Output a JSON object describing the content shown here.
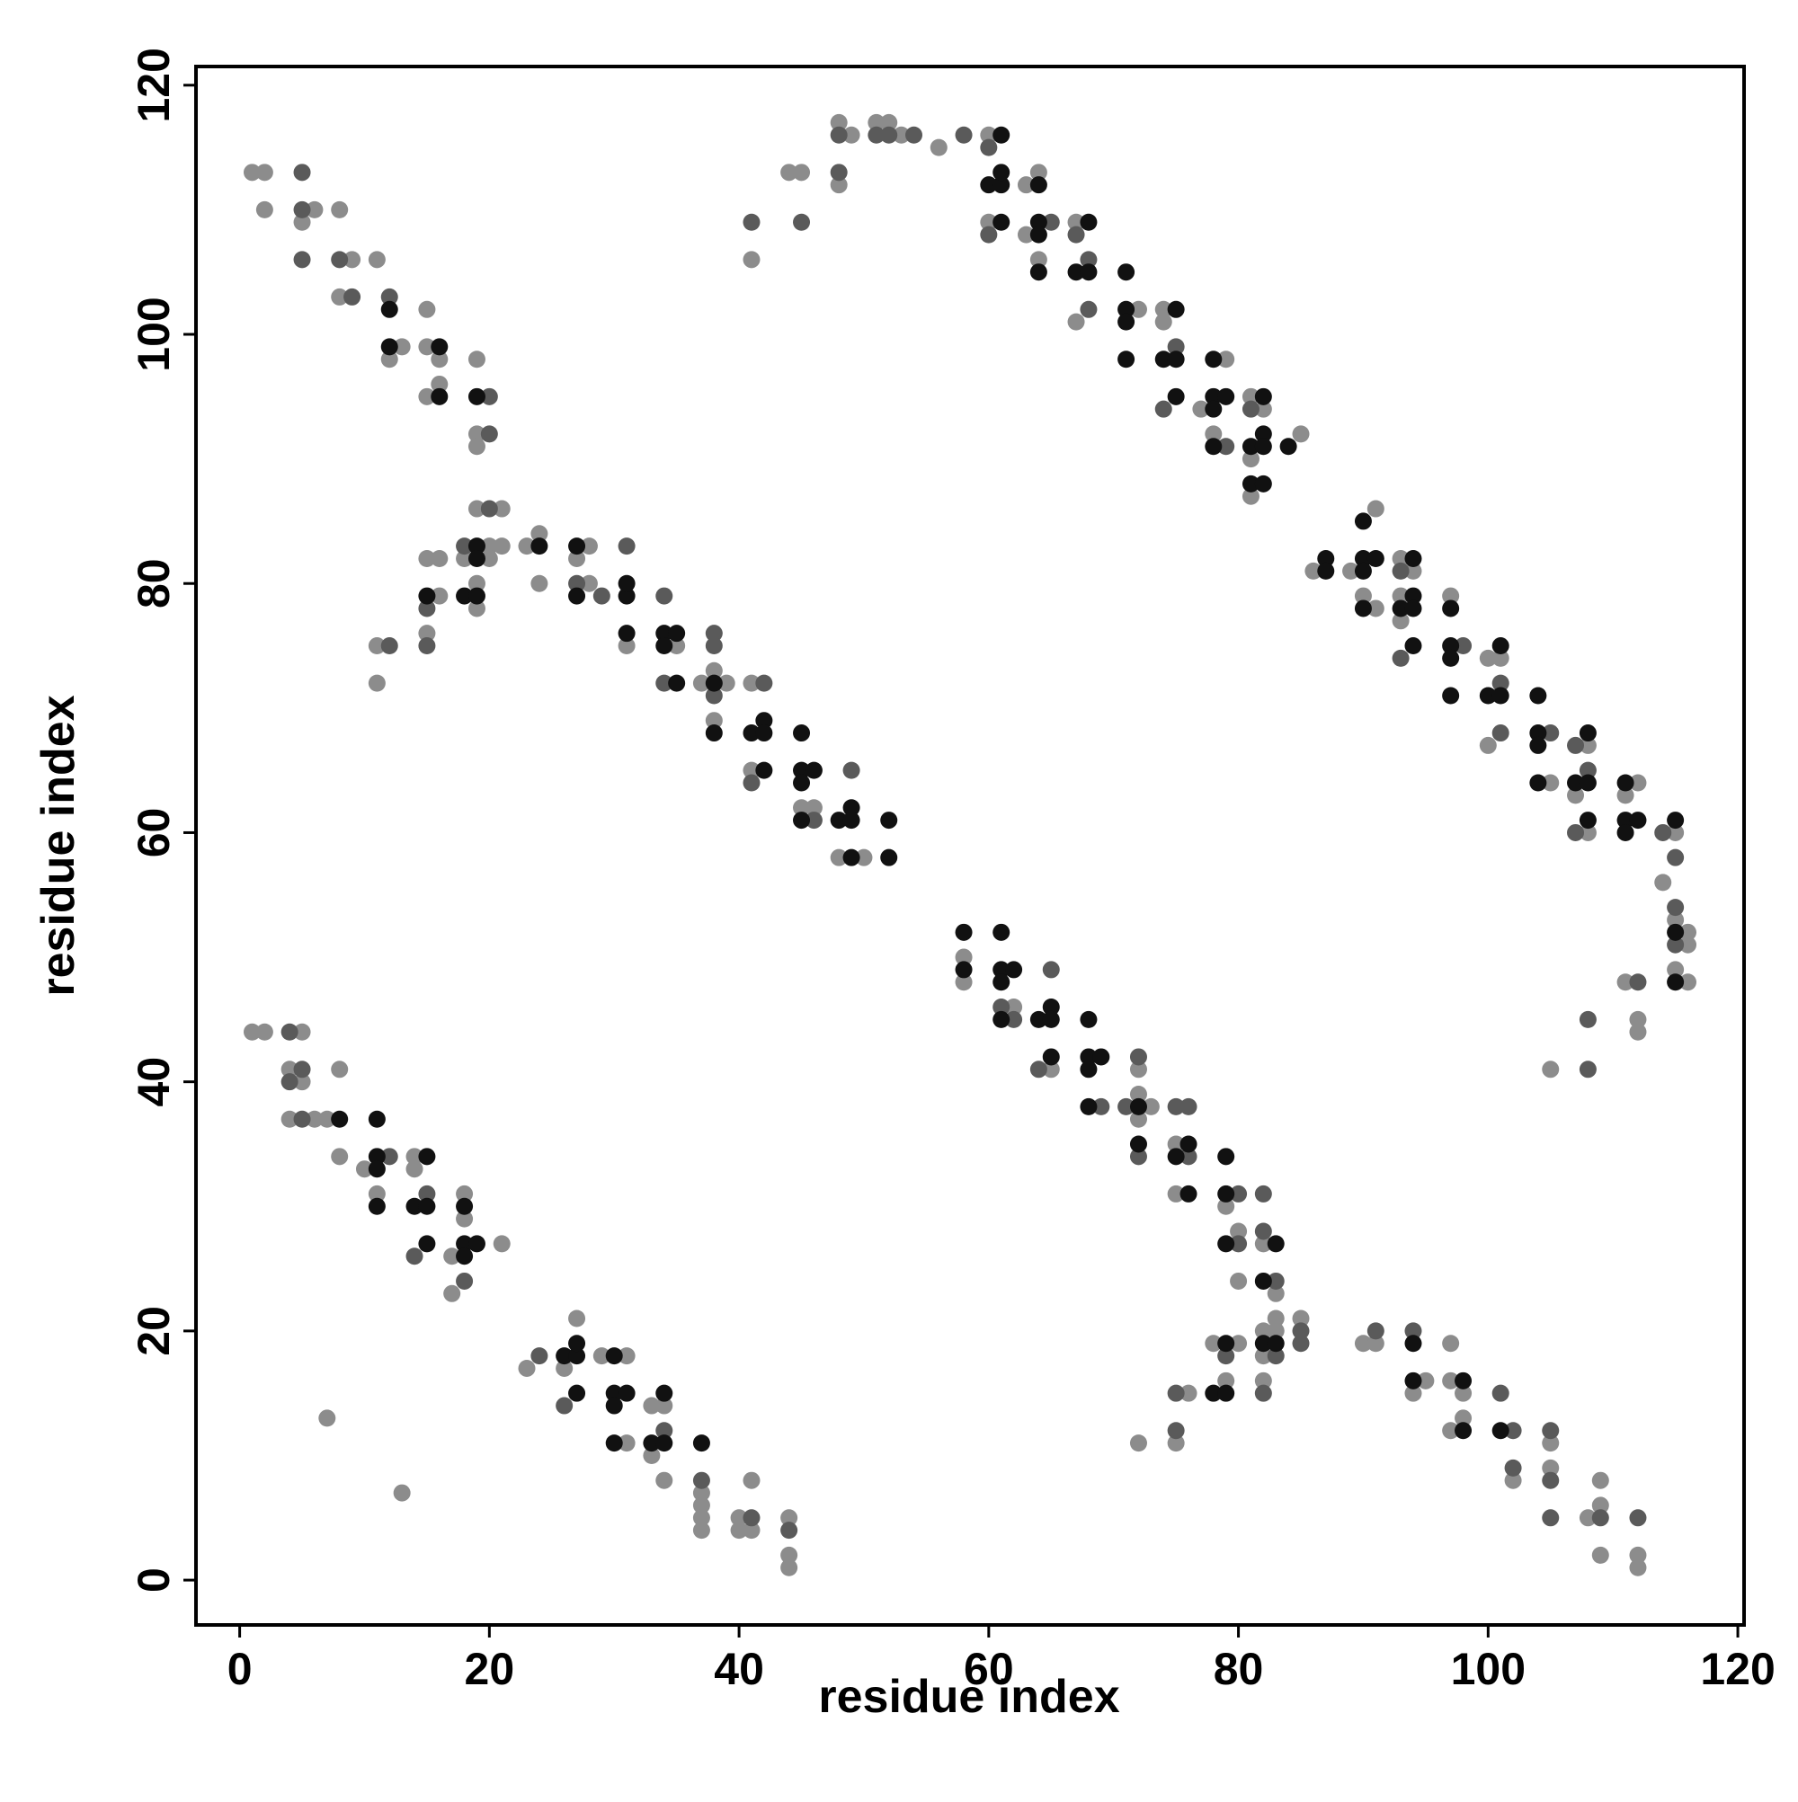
{
  "chart_data": {
    "type": "scatter",
    "x_label": "residue index",
    "y_label": "residue index",
    "xlim": [
      -3.5,
      120.5
    ],
    "ylim": [
      -3.6,
      121.5
    ],
    "xticks": [
      0,
      20,
      40,
      60,
      80,
      100,
      120
    ],
    "yticks": [
      0,
      20,
      40,
      60,
      80,
      100,
      120
    ],
    "series": [
      {
        "color": "#8c8c8c",
        "x": [
          1,
          2,
          2,
          6,
          5,
          8,
          9,
          11,
          8,
          15,
          13,
          12,
          15,
          16,
          16,
          15,
          19,
          19,
          19,
          19,
          21,
          20,
          21,
          18,
          20,
          19,
          19,
          15,
          16,
          16,
          15,
          11,
          11,
          23,
          24,
          24,
          28,
          27,
          28,
          31,
          35,
          37,
          38,
          39,
          38,
          41,
          41,
          45,
          46,
          48,
          50,
          41,
          44,
          45,
          48,
          48,
          49,
          51,
          52,
          53,
          56,
          60,
          60,
          63,
          64,
          63,
          64,
          67,
          67,
          72,
          74,
          74,
          77,
          79,
          78,
          81,
          82,
          81,
          81,
          85,
          86,
          89,
          91,
          90,
          91,
          93,
          94,
          93,
          93,
          97,
          100,
          101,
          100,
          105,
          108,
          107,
          108,
          112,
          111,
          115,
          114,
          115,
          116,
          116,
          115,
          116,
          111,
          112,
          112,
          105,
          58,
          58,
          62,
          65,
          72,
          72,
          73,
          72,
          75,
          75,
          79,
          80,
          80,
          82,
          83,
          85,
          83,
          82,
          83,
          82,
          78,
          80,
          79,
          82,
          76,
          75,
          72,
          90,
          91,
          97,
          95,
          94,
          97,
          98,
          98,
          97,
          102,
          105,
          105,
          109,
          108,
          109,
          109,
          112,
          112,
          1,
          2,
          5,
          4,
          5,
          4,
          6,
          7,
          8,
          8,
          10,
          11,
          14,
          14,
          18,
          18,
          17,
          21,
          17,
          7,
          13,
          23,
          27,
          26,
          29,
          31,
          31,
          33,
          34,
          33,
          34,
          37,
          37,
          37,
          37,
          40,
          40,
          41,
          41,
          44,
          44,
          44
        ],
        "values": [
          113,
          113,
          110,
          110,
          109,
          110,
          106,
          106,
          103,
          102,
          99,
          98,
          99,
          98,
          96,
          95,
          98,
          92,
          91,
          86,
          86,
          83,
          83,
          82,
          82,
          80,
          78,
          82,
          82,
          79,
          76,
          75,
          72,
          83,
          84,
          80,
          83,
          82,
          80,
          75,
          75,
          72,
          73,
          72,
          69,
          72,
          65,
          62,
          62,
          58,
          58,
          106,
          113,
          113,
          112,
          117,
          116,
          117,
          117,
          116,
          115,
          116,
          109,
          112,
          113,
          108,
          106,
          109,
          101,
          102,
          102,
          101,
          94,
          98,
          92,
          95,
          94,
          90,
          87,
          92,
          81,
          81,
          86,
          79,
          78,
          82,
          81,
          79,
          77,
          79,
          74,
          74,
          67,
          64,
          67,
          63,
          60,
          64,
          63,
          60,
          56,
          53,
          52,
          51,
          49,
          48,
          48,
          45,
          44,
          41,
          50,
          48,
          46,
          41,
          41,
          39,
          38,
          37,
          35,
          31,
          30,
          28,
          24,
          27,
          23,
          21,
          21,
          20,
          20,
          18,
          19,
          19,
          16,
          16,
          15,
          11,
          11,
          19,
          19,
          19,
          16,
          15,
          16,
          15,
          13,
          12,
          8,
          11,
          9,
          8,
          5,
          6,
          2,
          2,
          1,
          44,
          44,
          44,
          41,
          40,
          37,
          37,
          37,
          41,
          34,
          33,
          31,
          34,
          33,
          31,
          29,
          26,
          27,
          23,
          13,
          7,
          17,
          21,
          17,
          18,
          18,
          11,
          14,
          14,
          10,
          8,
          7,
          6,
          5,
          4,
          5,
          4,
          4,
          8,
          5,
          2,
          1
        ]
      },
      {
        "color": "#5a5a5a",
        "x": [
          5,
          5,
          5,
          8,
          9,
          12,
          20,
          20,
          20,
          18,
          15,
          15,
          12,
          27,
          29,
          31,
          34,
          34,
          38,
          38,
          38,
          42,
          41,
          46,
          49,
          41,
          45,
          48,
          48,
          51,
          52,
          54,
          58,
          60,
          60,
          65,
          67,
          68,
          68,
          75,
          74,
          79,
          81,
          101,
          101,
          105,
          107,
          108,
          107,
          114,
          115,
          115,
          115,
          112,
          108,
          108,
          93,
          93,
          98,
          65,
          61,
          62,
          64,
          69,
          71,
          72,
          72,
          75,
          76,
          76,
          80,
          80,
          82,
          82,
          83,
          85,
          85,
          83,
          79,
          82,
          75,
          75,
          91,
          94,
          101,
          102,
          102,
          105,
          105,
          105,
          109,
          112,
          4,
          5,
          4,
          5,
          12,
          15,
          14,
          18,
          24,
          26,
          34,
          37,
          41,
          44
        ],
        "values": [
          113,
          110,
          106,
          106,
          103,
          103,
          95,
          92,
          86,
          83,
          78,
          75,
          75,
          80,
          79,
          83,
          79,
          72,
          76,
          75,
          71,
          72,
          64,
          61,
          65,
          109,
          109,
          113,
          116,
          116,
          116,
          116,
          116,
          115,
          108,
          109,
          108,
          106,
          102,
          99,
          94,
          91,
          94,
          72,
          68,
          68,
          67,
          65,
          60,
          60,
          58,
          54,
          51,
          48,
          45,
          41,
          81,
          74,
          75,
          49,
          46,
          45,
          41,
          38,
          38,
          42,
          34,
          38,
          38,
          34,
          31,
          27,
          31,
          28,
          24,
          20,
          19,
          18,
          18,
          15,
          15,
          12,
          20,
          20,
          15,
          12,
          9,
          12,
          8,
          5,
          5,
          5,
          44,
          41,
          40,
          37,
          34,
          31,
          26,
          24,
          18,
          14,
          12,
          8,
          5,
          4
        ]
      },
      {
        "color": "#111111",
        "x": [
          12,
          12,
          16,
          16,
          19,
          19,
          19,
          18,
          19,
          15,
          24,
          27,
          27,
          31,
          31,
          31,
          34,
          35,
          34,
          35,
          38,
          38,
          41,
          42,
          42,
          45,
          42,
          45,
          46,
          45,
          45,
          48,
          49,
          49,
          52,
          49,
          52,
          61,
          60,
          61,
          61,
          61,
          64,
          64,
          64,
          64,
          68,
          67,
          68,
          71,
          71,
          71,
          71,
          75,
          74,
          75,
          75,
          78,
          78,
          79,
          78,
          78,
          82,
          82,
          81,
          82,
          81,
          82,
          84,
          87,
          87,
          90,
          90,
          91,
          90,
          90,
          94,
          94,
          93,
          94,
          94,
          97,
          97,
          97,
          97,
          101,
          100,
          101,
          104,
          104,
          104,
          104,
          108,
          107,
          108,
          108,
          111,
          111,
          112,
          111,
          115,
          115,
          115,
          58,
          61,
          58,
          61,
          62,
          61,
          61,
          64,
          65,
          65,
          65,
          68,
          68,
          69,
          68,
          68,
          72,
          72,
          76,
          75,
          76,
          79,
          79,
          79,
          83,
          82,
          82,
          83,
          79,
          78,
          79,
          94,
          94,
          98,
          98,
          101,
          8,
          11,
          11,
          11,
          11,
          15,
          14,
          15,
          15,
          18,
          18,
          19,
          18,
          26,
          27,
          27,
          27,
          30,
          30,
          31,
          30,
          30,
          34,
          33,
          34,
          37
        ],
        "values": [
          102,
          99,
          99,
          95,
          95,
          83,
          82,
          79,
          79,
          79,
          83,
          83,
          79,
          79,
          80,
          76,
          76,
          76,
          75,
          72,
          72,
          68,
          68,
          69,
          68,
          68,
          65,
          65,
          65,
          64,
          61,
          61,
          62,
          61,
          61,
          58,
          58,
          116,
          112,
          112,
          113,
          109,
          112,
          109,
          108,
          105,
          109,
          105,
          105,
          105,
          102,
          101,
          98,
          102,
          98,
          98,
          95,
          98,
          95,
          95,
          94,
          91,
          95,
          92,
          91,
          91,
          88,
          88,
          91,
          82,
          81,
          85,
          82,
          82,
          81,
          78,
          82,
          79,
          78,
          78,
          75,
          78,
          75,
          74,
          71,
          75,
          71,
          71,
          71,
          68,
          67,
          64,
          68,
          64,
          64,
          61,
          64,
          61,
          61,
          60,
          61,
          52,
          48,
          52,
          52,
          49,
          49,
          49,
          48,
          45,
          45,
          46,
          45,
          42,
          45,
          42,
          42,
          41,
          38,
          38,
          35,
          35,
          34,
          31,
          34,
          31,
          27,
          27,
          24,
          19,
          19,
          19,
          15,
          15,
          19,
          16,
          16,
          12,
          12,
          37,
          37,
          34,
          33,
          30,
          34,
          30,
          30,
          27,
          30,
          27,
          27,
          26,
          18,
          18,
          19,
          15,
          18,
          15,
          15,
          14,
          11,
          15,
          11,
          11,
          11
        ]
      }
    ]
  }
}
